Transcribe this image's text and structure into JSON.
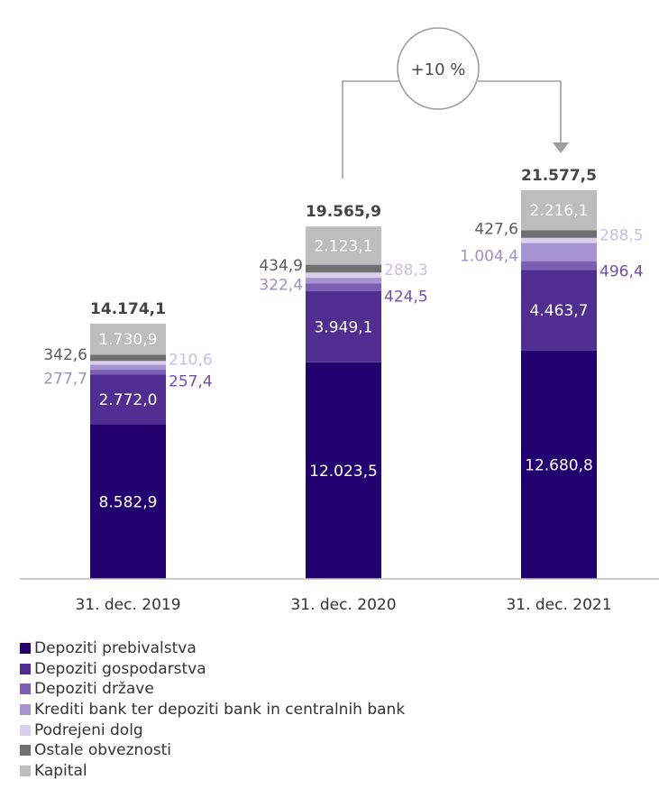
{
  "chart_data": {
    "type": "bar",
    "stacked": true,
    "categories": [
      "31. dec. 2019",
      "31. dec. 2020",
      "31. dec. 2021"
    ],
    "totals": [
      "14.174,1",
      "19.565,9",
      "21.577,5"
    ],
    "growth_label": "+10 %",
    "series": [
      {
        "name": "Depoziti prebivalstva",
        "color": "#220070",
        "label_color": "#ffffff",
        "values": [
          8582.9,
          12023.5,
          12680.8
        ],
        "labels": [
          "8.582,9",
          "12.023,5",
          "12.680,8"
        ]
      },
      {
        "name": "Depoziti gospodarstva",
        "color": "#4f2d91",
        "label_color": "#ffffff",
        "values": [
          2772.0,
          3949.1,
          4463.7
        ],
        "labels": [
          "2.772,0",
          "3.949,1",
          "4.463,7"
        ]
      },
      {
        "name": "Depoziti države",
        "color": "#7b5fb3",
        "label_color": "#6d4fb0",
        "values": [
          257.4,
          424.5,
          496.4
        ],
        "labels": [
          "257,4",
          "424,5",
          "496,4"
        ]
      },
      {
        "name": "Krediti bank ter depoziti bank in centralnih bank",
        "color": "#a694d0",
        "label_color": "#9e8fcb",
        "values": [
          277.7,
          322.4,
          1004.4
        ],
        "labels": [
          "277,7",
          "322,4",
          "1.004,4"
        ]
      },
      {
        "name": "Podrejeni dolg",
        "color": "#d9d0ee",
        "label_color": "#c9bfe3",
        "values": [
          210.6,
          288.3,
          288.5
        ],
        "labels": [
          "210,6",
          "288,3",
          "288,5"
        ]
      },
      {
        "name": "Ostale obveznosti",
        "color": "#707070",
        "label_color": "#5a5a5a",
        "values": [
          342.6,
          434.9,
          427.6
        ],
        "labels": [
          "342,6",
          "434,9",
          "427,6"
        ]
      },
      {
        "name": "Kapital",
        "color": "#bdbdbd",
        "label_color": "#ffffff",
        "values": [
          1730.9,
          2123.1,
          2216.1
        ],
        "labels": [
          "1.730,9",
          "2.123,1",
          "2.216,1"
        ]
      }
    ],
    "legend_position": "bottom-left",
    "grid": false
  }
}
